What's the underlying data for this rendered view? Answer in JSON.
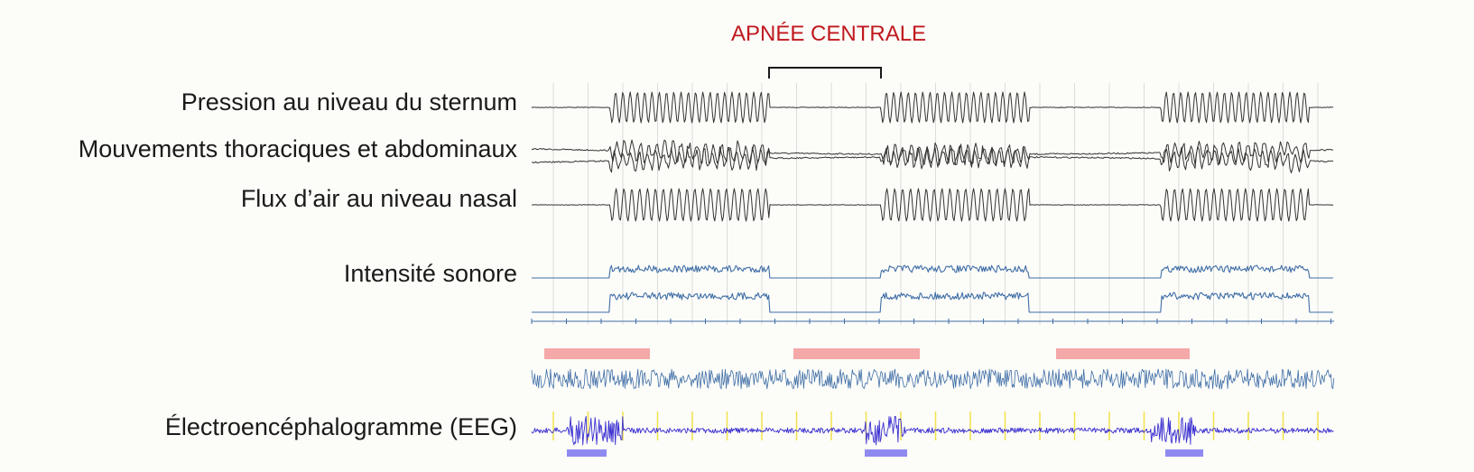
{
  "annotation": {
    "apnea_label": "APNÉE CENTRALE",
    "color": "#c0191e"
  },
  "channels": [
    {
      "label": "Pression au niveau du sternum"
    },
    {
      "label": "Mouvements thoraciques et abdominaux"
    },
    {
      "label": "Flux d’air au niveau nasal"
    },
    {
      "label": "Intensité sonore"
    },
    {
      "label": "Électroencéphalogramme (EEG)"
    }
  ],
  "colors": {
    "trace_black": "#333333",
    "trace_blue": "#3f6ea6",
    "eeg": "#3a2fd0",
    "grid": "#dcdcdc",
    "marker_yellow": "#f2e24a",
    "bar_pink": "#f4a8a8",
    "bar_blue": "#8f8af0"
  },
  "pattern": {
    "cycles": 3,
    "phases": [
      "breathing",
      "central_apnea",
      "breathing",
      "central_apnea",
      "breathing"
    ]
  }
}
